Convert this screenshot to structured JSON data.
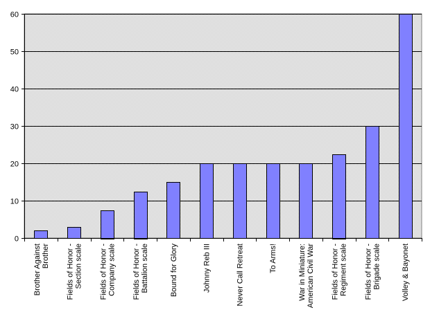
{
  "chart_data": {
    "type": "bar",
    "title": "",
    "xlabel": "",
    "ylabel": "",
    "ylim": [
      0,
      60
    ],
    "yticks": [
      0,
      10,
      20,
      30,
      40,
      50,
      60
    ],
    "grid": true,
    "categories": [
      [
        "Brother Against",
        "Brother"
      ],
      [
        "Fields of Honor -",
        "Section scale"
      ],
      [
        "Fields of Honor -",
        "Company scale"
      ],
      [
        "Fields of Honor -",
        "Battalion scale"
      ],
      [
        "Bound for Glory"
      ],
      [
        "Johnny Reb III"
      ],
      [
        "Never Call Retreat"
      ],
      [
        "To Arms!"
      ],
      [
        "War in Miniature:",
        "American Civil War"
      ],
      [
        "Fields of Honor -",
        "Regiment scale"
      ],
      [
        "Fields of Honor -",
        "Brigade scale"
      ],
      [
        "Volley & Bayonet"
      ]
    ],
    "values": [
      2,
      3,
      7.5,
      12.5,
      15,
      20,
      20,
      20,
      20,
      22.5,
      30,
      60
    ],
    "colors": {
      "bar_fill": "#8080ff",
      "bar_stroke": "#000000",
      "plot_background": "#c0c0c0",
      "gridline": "#000000"
    }
  }
}
